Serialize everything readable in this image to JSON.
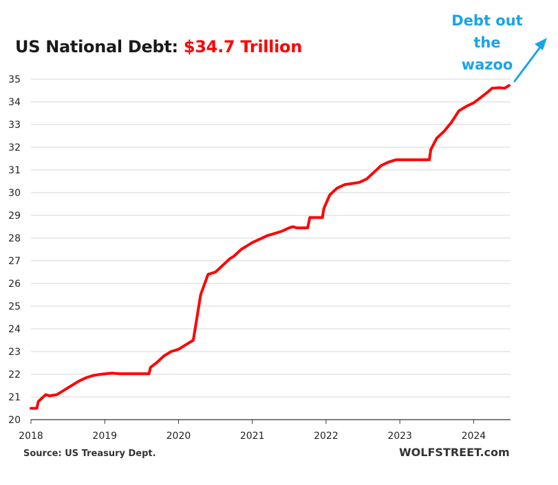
{
  "chart_data": {
    "type": "line",
    "title": "US National Debt:",
    "title_highlight": "$34.7 Trillion",
    "annotation": "Debt out the wazoo",
    "source_note": "Source: US Treasury Dept.",
    "credit": "WOLFSTREET.com",
    "ylim": [
      20,
      35
    ],
    "y_ticks": [
      "20",
      "21",
      "22",
      "23",
      "24",
      "25",
      "26",
      "27",
      "28",
      "29",
      "30",
      "31",
      "32",
      "33",
      "34",
      "35"
    ],
    "xlim": [
      2018,
      2024.5
    ],
    "x_ticks": [
      "2018",
      "2019",
      "2020",
      "2021",
      "2022",
      "2023",
      "2024"
    ],
    "grid": true,
    "legend": "none",
    "series": [
      {
        "x": [
          2018.0,
          2018.08,
          2018.1,
          2018.2,
          2018.25,
          2018.35,
          2018.45,
          2018.55,
          2018.65,
          2018.75,
          2018.85,
          2018.95,
          2019.1,
          2019.2,
          2019.35,
          2019.5,
          2019.6,
          2019.62,
          2019.7,
          2019.8,
          2019.9,
          2020.0,
          2020.1,
          2020.2,
          2020.25,
          2020.3,
          2020.4,
          2020.5,
          2020.6,
          2020.7,
          2020.75,
          2020.85,
          2020.95,
          2021.0,
          2021.1,
          2021.2,
          2021.3,
          2021.4,
          2021.5,
          2021.55,
          2021.6,
          2021.75,
          2021.78,
          2021.95,
          2021.97,
          2022.05,
          2022.15,
          2022.25,
          2022.35,
          2022.45,
          2022.55,
          2022.65,
          2022.75,
          2022.85,
          2022.95,
          2023.1,
          2023.3,
          2023.4,
          2023.42,
          2023.5,
          2023.6,
          2023.7,
          2023.8,
          2023.9,
          2024.0,
          2024.1,
          2024.2,
          2024.25,
          2024.35,
          2024.42,
          2024.48
        ],
        "values": [
          20.5,
          20.5,
          20.8,
          21.1,
          21.05,
          21.1,
          21.3,
          21.5,
          21.7,
          21.85,
          21.95,
          22.0,
          22.05,
          22.02,
          22.02,
          22.02,
          22.02,
          22.3,
          22.5,
          22.8,
          23.0,
          23.1,
          23.3,
          23.5,
          24.5,
          25.5,
          26.4,
          26.5,
          26.8,
          27.1,
          27.2,
          27.5,
          27.7,
          27.8,
          27.95,
          28.1,
          28.2,
          28.3,
          28.45,
          28.5,
          28.45,
          28.45,
          28.9,
          28.9,
          29.3,
          29.9,
          30.2,
          30.35,
          30.4,
          30.45,
          30.6,
          30.9,
          31.2,
          31.35,
          31.45,
          31.45,
          31.45,
          31.45,
          31.9,
          32.4,
          32.7,
          33.1,
          33.6,
          33.8,
          33.95,
          34.2,
          34.45,
          34.6,
          34.62,
          34.6,
          34.72
        ]
      }
    ]
  }
}
